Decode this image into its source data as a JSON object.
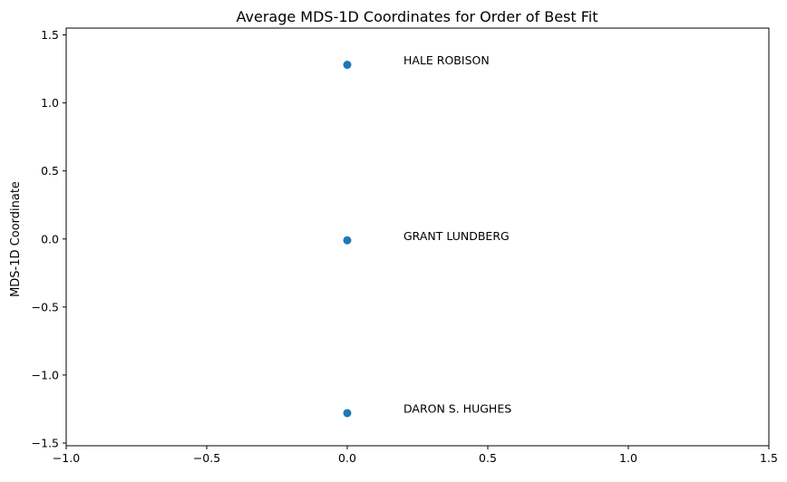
{
  "chart_data": {
    "type": "scatter",
    "title": "Average MDS-1D Coordinates for Order of Best Fit",
    "xlabel": "",
    "ylabel": "MDS-1D Coordinate",
    "xlim": [
      -1.0,
      1.5
    ],
    "ylim": [
      -1.52,
      1.55
    ],
    "xticks": [
      -1.0,
      -0.5,
      0.0,
      0.5,
      1.0,
      1.5
    ],
    "xtick_labels": [
      "−1.0",
      "−0.5",
      "0.0",
      "0.5",
      "1.0",
      "1.5"
    ],
    "yticks": [
      -1.5,
      -1.0,
      -0.5,
      0.0,
      0.5,
      1.0,
      1.5
    ],
    "ytick_labels": [
      "−1.5",
      "−1.0",
      "−0.5",
      "0.0",
      "0.5",
      "1.0",
      "1.5"
    ],
    "grid": false,
    "marker_color": "#1f77b4",
    "points": [
      {
        "x": 0.0,
        "y": 1.28,
        "label": "HALE ROBISON"
      },
      {
        "x": 0.0,
        "y": -0.01,
        "label": "GRANT LUNDBERG"
      },
      {
        "x": 0.0,
        "y": -1.28,
        "label": "DARON S. HUGHES"
      }
    ]
  }
}
